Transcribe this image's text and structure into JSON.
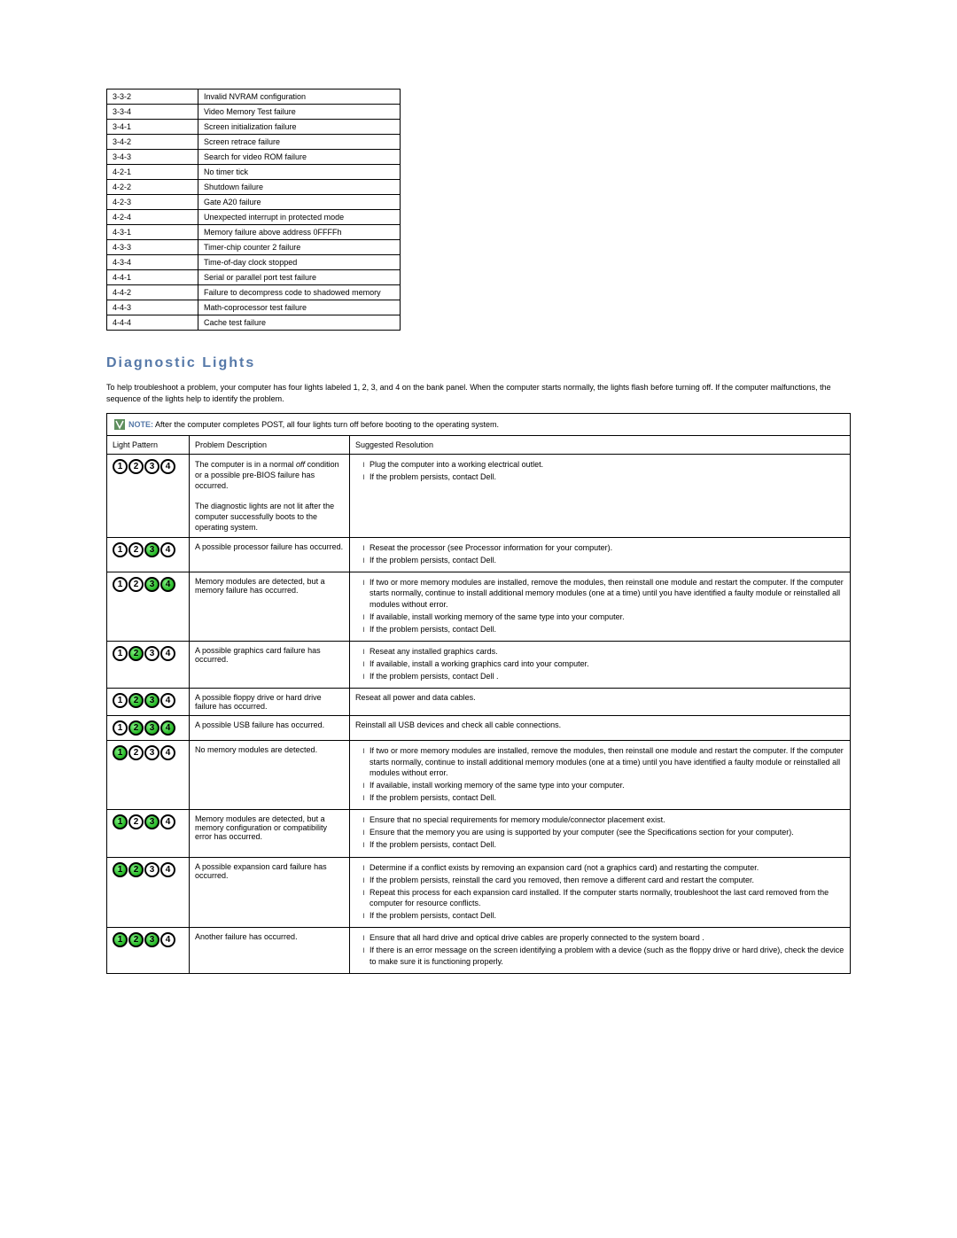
{
  "beep_codes": [
    {
      "code": "3-3-2",
      "desc": "Invalid NVRAM configuration"
    },
    {
      "code": "3-3-4",
      "desc": "Video Memory Test failure"
    },
    {
      "code": "3-4-1",
      "desc": "Screen initialization failure"
    },
    {
      "code": "3-4-2",
      "desc": "Screen retrace failure"
    },
    {
      "code": "3-4-3",
      "desc": "Search for video ROM failure"
    },
    {
      "code": "4-2-1",
      "desc": "No timer tick"
    },
    {
      "code": "4-2-2",
      "desc": "Shutdown failure"
    },
    {
      "code": "4-2-3",
      "desc": "Gate A20 failure"
    },
    {
      "code": "4-2-4",
      "desc": "Unexpected interrupt in protected mode"
    },
    {
      "code": "4-3-1",
      "desc": "Memory failure above address 0FFFFh"
    },
    {
      "code": "4-3-3",
      "desc": "Timer-chip counter 2 failure"
    },
    {
      "code": "4-3-4",
      "desc": "Time-of-day clock stopped"
    },
    {
      "code": "4-4-1",
      "desc": "Serial or parallel port test failure"
    },
    {
      "code": "4-4-2",
      "desc": "Failure to decompress code to shadowed memory"
    },
    {
      "code": "4-4-3",
      "desc": "Math-coprocessor test failure"
    },
    {
      "code": "4-4-4",
      "desc": "Cache test failure"
    }
  ],
  "section_heading": "Diagnostic Lights",
  "intro_text": "To help troubleshoot a problem, your computer has four lights labeled 1, 2, 3, and 4 on the bank panel. When the computer starts normally, the lights flash before turning off. If the computer malfunctions, the sequence of the lights help to identify the problem.",
  "note_label": "NOTE:",
  "note_text": "After the computer completes POST, all four lights turn off before booting to the operating system.",
  "diag_headers": {
    "pattern": "Light Pattern",
    "desc": "Problem Description",
    "res": "Suggested Resolution"
  },
  "colors": {
    "heading": "#5578a8",
    "light_on": "#00a000",
    "light_off": "#ffffff",
    "border": "#000000"
  },
  "diag_rows": [
    {
      "pattern": [
        0,
        0,
        0,
        0
      ],
      "desc_parts": [
        {
          "pre": "The computer is in a normal ",
          "ital": "off",
          "post": " condition or a possible pre-BIOS failure has occurred."
        },
        {
          "full": "The diagnostic lights are not lit after the computer successfully boots to the operating system."
        }
      ],
      "res": [
        "Plug the computer into a working electrical outlet.",
        "If the problem persists, contact Dell."
      ]
    },
    {
      "pattern": [
        0,
        0,
        1,
        0
      ],
      "desc": "A possible processor failure has occurred.",
      "res": [
        "Reseat the processor (see Processor information for your computer).",
        "If the problem persists, contact Dell."
      ]
    },
    {
      "pattern": [
        0,
        0,
        1,
        1
      ],
      "desc": "Memory modules are detected, but a memory failure has occurred.",
      "res": [
        "If two or more memory modules are installed, remove the modules, then reinstall one module and restart the computer. If the computer starts normally, continue to install additional memory modules (one at a time) until you have identified a faulty module or reinstalled all modules without error.",
        "If available, install working memory of the same type into your computer.",
        "If the problem persists, contact Dell."
      ]
    },
    {
      "pattern": [
        0,
        1,
        0,
        0
      ],
      "desc": "A possible graphics card failure has occurred.",
      "res": [
        "Reseat any installed graphics cards.",
        "If available, install a working graphics card into your computer.",
        "If the problem persists, contact Dell ."
      ]
    },
    {
      "pattern": [
        0,
        1,
        1,
        0
      ],
      "desc": "A possible floppy drive or hard drive failure has occurred.",
      "res_plain": "Reseat all power and data cables."
    },
    {
      "pattern": [
        0,
        1,
        1,
        1
      ],
      "desc": "A possible USB failure has occurred.",
      "res_plain": "Reinstall all USB devices and check all cable connections."
    },
    {
      "pattern": [
        1,
        0,
        0,
        0
      ],
      "desc": "No memory modules are detected.",
      "res": [
        "If two or more memory modules are installed, remove the modules, then reinstall one module and restart the computer. If the computer starts normally, continue to install additional memory modules (one at a time) until you have identified a faulty module or reinstalled all modules without error.",
        "If available, install working memory of the same type into your computer.",
        "If the problem persists, contact Dell."
      ]
    },
    {
      "pattern": [
        1,
        0,
        1,
        0
      ],
      "desc": "Memory modules are detected, but a memory configuration or compatibility error has occurred.",
      "res": [
        "Ensure that no special requirements for memory module/connector placement exist.",
        "Ensure that the memory you are using is supported by your computer (see the Specifications section for your computer).",
        "If the problem persists, contact Dell."
      ]
    },
    {
      "pattern": [
        1,
        1,
        0,
        0
      ],
      "desc": "A possible expansion card failure has occurred.",
      "res": [
        "Determine if a conflict exists by removing an expansion card (not a graphics card) and restarting the computer.",
        "If the problem persists, reinstall the card you removed, then remove a different card and restart the computer.",
        "Repeat this process for each expansion card installed. If the computer starts normally, troubleshoot the last card removed from the computer for resource conflicts.",
        "If the problem persists, contact Dell."
      ]
    },
    {
      "pattern": [
        1,
        1,
        1,
        0
      ],
      "desc": "Another failure has occurred.",
      "res": [
        "Ensure that all hard drive and optical drive cables are properly connected to the system board .",
        "If there is an error message on the screen identifying a problem with a device (such as the floppy drive or hard drive), check the device to make sure it is functioning properly."
      ]
    }
  ]
}
